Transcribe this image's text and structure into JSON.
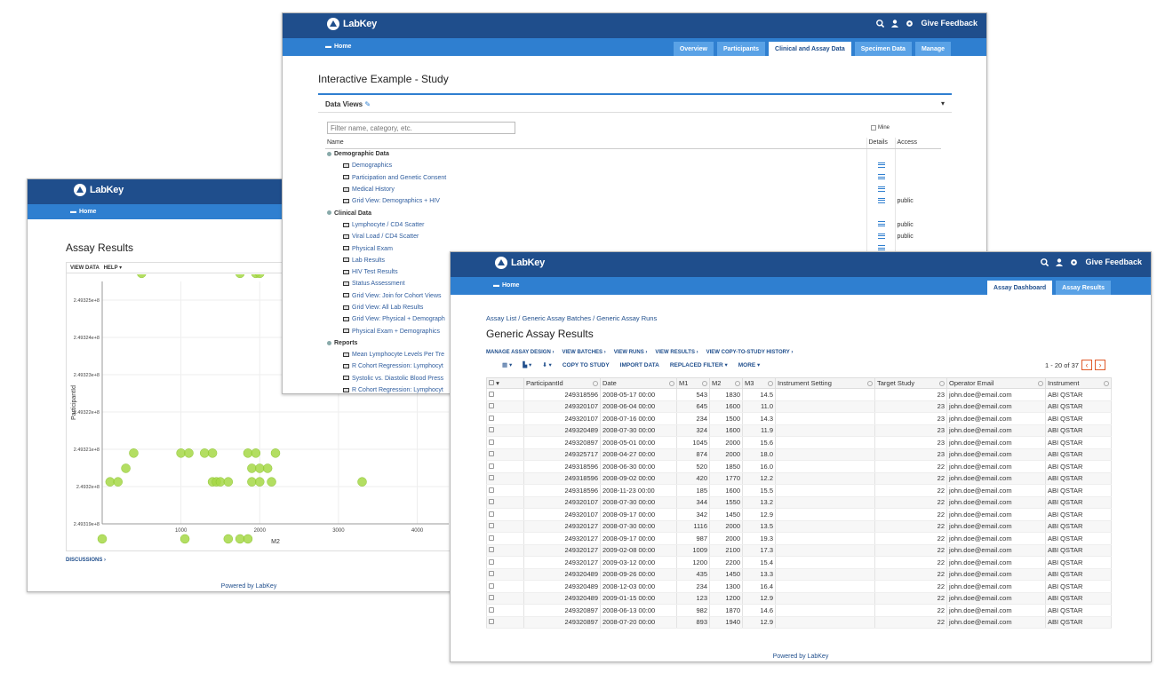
{
  "brand": "LabKey",
  "home_label": "Home",
  "feedback_label": "Give Feedback",
  "powered_by": "Powered by LabKey",
  "study": {
    "tabs": [
      "Overview",
      "Participants",
      "Clinical and Assay Data",
      "Specimen Data",
      "Manage"
    ],
    "active_tab": "Clinical and Assay Data",
    "title": "Interactive Example - Study",
    "panel_title": "Data Views",
    "filter_placeholder": "Filter name, category, etc.",
    "mine_label": "Mine",
    "columns": {
      "name": "Name",
      "details": "Details",
      "access": "Access"
    },
    "rows": [
      {
        "kind": "cat",
        "name": "Demographic Data"
      },
      {
        "kind": "item",
        "name": "Demographics",
        "details": true,
        "access": ""
      },
      {
        "kind": "item",
        "name": "Participation and Genetic Consent",
        "details": true,
        "access": ""
      },
      {
        "kind": "item",
        "name": "Medical History",
        "details": true,
        "access": ""
      },
      {
        "kind": "item",
        "name": "Grid View: Demographics + HIV",
        "details": true,
        "access": "public"
      },
      {
        "kind": "cat",
        "name": "Clinical Data"
      },
      {
        "kind": "item",
        "name": "Lymphocyte / CD4 Scatter",
        "details": true,
        "access": "public"
      },
      {
        "kind": "item",
        "name": "Viral Load / CD4 Scatter",
        "details": true,
        "access": "public"
      },
      {
        "kind": "item",
        "name": "Physical Exam",
        "details": true,
        "access": ""
      },
      {
        "kind": "item",
        "name": "Lab Results",
        "details": false,
        "access": ""
      },
      {
        "kind": "item",
        "name": "HIV Test Results",
        "details": false,
        "access": ""
      },
      {
        "kind": "item",
        "name": "Status Assessment",
        "details": false,
        "access": ""
      },
      {
        "kind": "item",
        "name": "Grid View: Join for Cohort Views",
        "details": false,
        "access": ""
      },
      {
        "kind": "item",
        "name": "Grid View: All Lab Results",
        "details": false,
        "access": ""
      },
      {
        "kind": "item",
        "name": "Grid View: Physical + Demograph",
        "details": false,
        "access": ""
      },
      {
        "kind": "item",
        "name": "Physical Exam + Demographics",
        "details": false,
        "access": ""
      },
      {
        "kind": "cat",
        "name": "Reports"
      },
      {
        "kind": "item",
        "name": "Mean Lymphocyte Levels Per Tre",
        "details": false,
        "access": ""
      },
      {
        "kind": "item",
        "name": "R Cohort Regression: Lymphocyt",
        "details": false,
        "access": ""
      },
      {
        "kind": "item",
        "name": "Systolic vs. Diastolic Blood Press",
        "details": false,
        "access": ""
      },
      {
        "kind": "item",
        "name": "R Cohort Regression: Lymphocyt",
        "details": false,
        "access": ""
      }
    ]
  },
  "assay": {
    "title": "Assay Results",
    "toolbar": [
      "VIEW DATA",
      "HELP"
    ],
    "discussions": "DISCUSSIONS"
  },
  "chart_data": {
    "type": "scatter",
    "title": "",
    "xlabel": "M2",
    "ylabel": "ParticipantId",
    "xlim": [
      0,
      4400
    ],
    "ylim": [
      249319000,
      249325500
    ],
    "xticks": [
      1000,
      2000,
      3000,
      4000
    ],
    "yticks": [
      {
        "v": 249319000,
        "label": "2.49319e+8"
      },
      {
        "v": 249320000,
        "label": "2.4932e+8"
      },
      {
        "v": 249321000,
        "label": "2.49321e+8"
      },
      {
        "v": 249322000,
        "label": "2.49322e+8"
      },
      {
        "v": 249323000,
        "label": "2.49323e+8"
      },
      {
        "v": 249324000,
        "label": "2.49324e+8"
      },
      {
        "v": 249325000,
        "label": "2.49325e+8"
      }
    ],
    "points": [
      [
        500,
        249325717
      ],
      [
        1750,
        249325717
      ],
      [
        1950,
        249325717
      ],
      [
        2000,
        249325717
      ],
      [
        400,
        249320897
      ],
      [
        1000,
        249320897
      ],
      [
        1100,
        249320897
      ],
      [
        1300,
        249320897
      ],
      [
        1400,
        249320897
      ],
      [
        1850,
        249320897
      ],
      [
        1950,
        249320897
      ],
      [
        2200,
        249320897
      ],
      [
        100,
        249320127
      ],
      [
        200,
        249320127
      ],
      [
        1400,
        249320127
      ],
      [
        1450,
        249320127
      ],
      [
        1500,
        249320127
      ],
      [
        1600,
        249320127
      ],
      [
        1900,
        249320127
      ],
      [
        2000,
        249320127
      ],
      [
        2150,
        249320127
      ],
      [
        3300,
        249320127
      ],
      [
        0,
        249318596
      ],
      [
        1050,
        249318596
      ],
      [
        1600,
        249318596
      ],
      [
        1750,
        249318596
      ],
      [
        1850,
        249318596
      ],
      [
        300,
        249320489
      ],
      [
        1900,
        249320489
      ],
      [
        2000,
        249320489
      ],
      [
        2100,
        249320489
      ]
    ]
  },
  "generic": {
    "tabs": [
      "Assay Dashboard",
      "Assay Results"
    ],
    "active_tab": "Assay Dashboard",
    "breadcrumbs": [
      "Assay List",
      "Generic Assay Batches",
      "Generic Assay Runs"
    ],
    "title": "Generic Assay Results",
    "links": [
      "MANAGE ASSAY DESIGN",
      "VIEW BATCHES",
      "VIEW RUNS",
      "VIEW RESULTS",
      "VIEW COPY-TO-STUDY HISTORY"
    ],
    "toolbar": [
      "COPY TO STUDY",
      "IMPORT DATA",
      "REPLACED FILTER",
      "MORE"
    ],
    "pager": "1 - 20 of 37",
    "columns": [
      "ParticipantId",
      "Date",
      "M1",
      "M2",
      "M3",
      "Instrument Setting",
      "Target Study",
      "Operator Email",
      "Instrument"
    ],
    "rows": [
      [
        "249318596",
        "2008-05-17 00:00",
        "543",
        "1830",
        "14.5",
        "",
        "23",
        "john.doe@email.com",
        "ABI QSTAR"
      ],
      [
        "249320107",
        "2008-06-04 00:00",
        "645",
        "1600",
        "11.0",
        "",
        "23",
        "john.doe@email.com",
        "ABI QSTAR"
      ],
      [
        "249320107",
        "2008-07-16 00:00",
        "234",
        "1500",
        "14.3",
        "",
        "23",
        "john.doe@email.com",
        "ABI QSTAR"
      ],
      [
        "249320489",
        "2008-07-30 00:00",
        "324",
        "1600",
        "11.9",
        "",
        "23",
        "john.doe@email.com",
        "ABI QSTAR"
      ],
      [
        "249320897",
        "2008-05-01 00:00",
        "1045",
        "2000",
        "15.6",
        "",
        "23",
        "john.doe@email.com",
        "ABI QSTAR"
      ],
      [
        "249325717",
        "2008-04-27 00:00",
        "874",
        "2000",
        "18.0",
        "",
        "23",
        "john.doe@email.com",
        "ABI QSTAR"
      ],
      [
        "249318596",
        "2008-06-30 00:00",
        "520",
        "1850",
        "16.0",
        "",
        "22",
        "john.doe@email.com",
        "ABI QSTAR"
      ],
      [
        "249318596",
        "2008-09-02 00:00",
        "420",
        "1770",
        "12.2",
        "",
        "22",
        "john.doe@email.com",
        "ABI QSTAR"
      ],
      [
        "249318596",
        "2008-11-23 00:00",
        "185",
        "1600",
        "15.5",
        "",
        "22",
        "john.doe@email.com",
        "ABI QSTAR"
      ],
      [
        "249320107",
        "2008-07-30 00:00",
        "344",
        "1550",
        "13.2",
        "",
        "22",
        "john.doe@email.com",
        "ABI QSTAR"
      ],
      [
        "249320107",
        "2008-09-17 00:00",
        "342",
        "1450",
        "12.9",
        "",
        "22",
        "john.doe@email.com",
        "ABI QSTAR"
      ],
      [
        "249320127",
        "2008-07-30 00:00",
        "1116",
        "2000",
        "13.5",
        "",
        "22",
        "john.doe@email.com",
        "ABI QSTAR"
      ],
      [
        "249320127",
        "2008-09-17 00:00",
        "987",
        "2000",
        "19.3",
        "",
        "22",
        "john.doe@email.com",
        "ABI QSTAR"
      ],
      [
        "249320127",
        "2009-02-08 00:00",
        "1009",
        "2100",
        "17.3",
        "",
        "22",
        "john.doe@email.com",
        "ABI QSTAR"
      ],
      [
        "249320127",
        "2009-03-12 00:00",
        "1200",
        "2200",
        "15.4",
        "",
        "22",
        "john.doe@email.com",
        "ABI QSTAR"
      ],
      [
        "249320489",
        "2008-09-26 00:00",
        "435",
        "1450",
        "13.3",
        "",
        "22",
        "john.doe@email.com",
        "ABI QSTAR"
      ],
      [
        "249320489",
        "2008-12-03 00:00",
        "234",
        "1300",
        "16.4",
        "",
        "22",
        "john.doe@email.com",
        "ABI QSTAR"
      ],
      [
        "249320489",
        "2009-01-15 00:00",
        "123",
        "1200",
        "12.9",
        "",
        "22",
        "john.doe@email.com",
        "ABI QSTAR"
      ],
      [
        "249320897",
        "2008-06-13 00:00",
        "982",
        "1870",
        "14.6",
        "",
        "22",
        "john.doe@email.com",
        "ABI QSTAR"
      ],
      [
        "249320897",
        "2008-07-20 00:00",
        "893",
        "1940",
        "12.9",
        "",
        "22",
        "john.doe@email.com",
        "ABI QSTAR"
      ]
    ]
  }
}
